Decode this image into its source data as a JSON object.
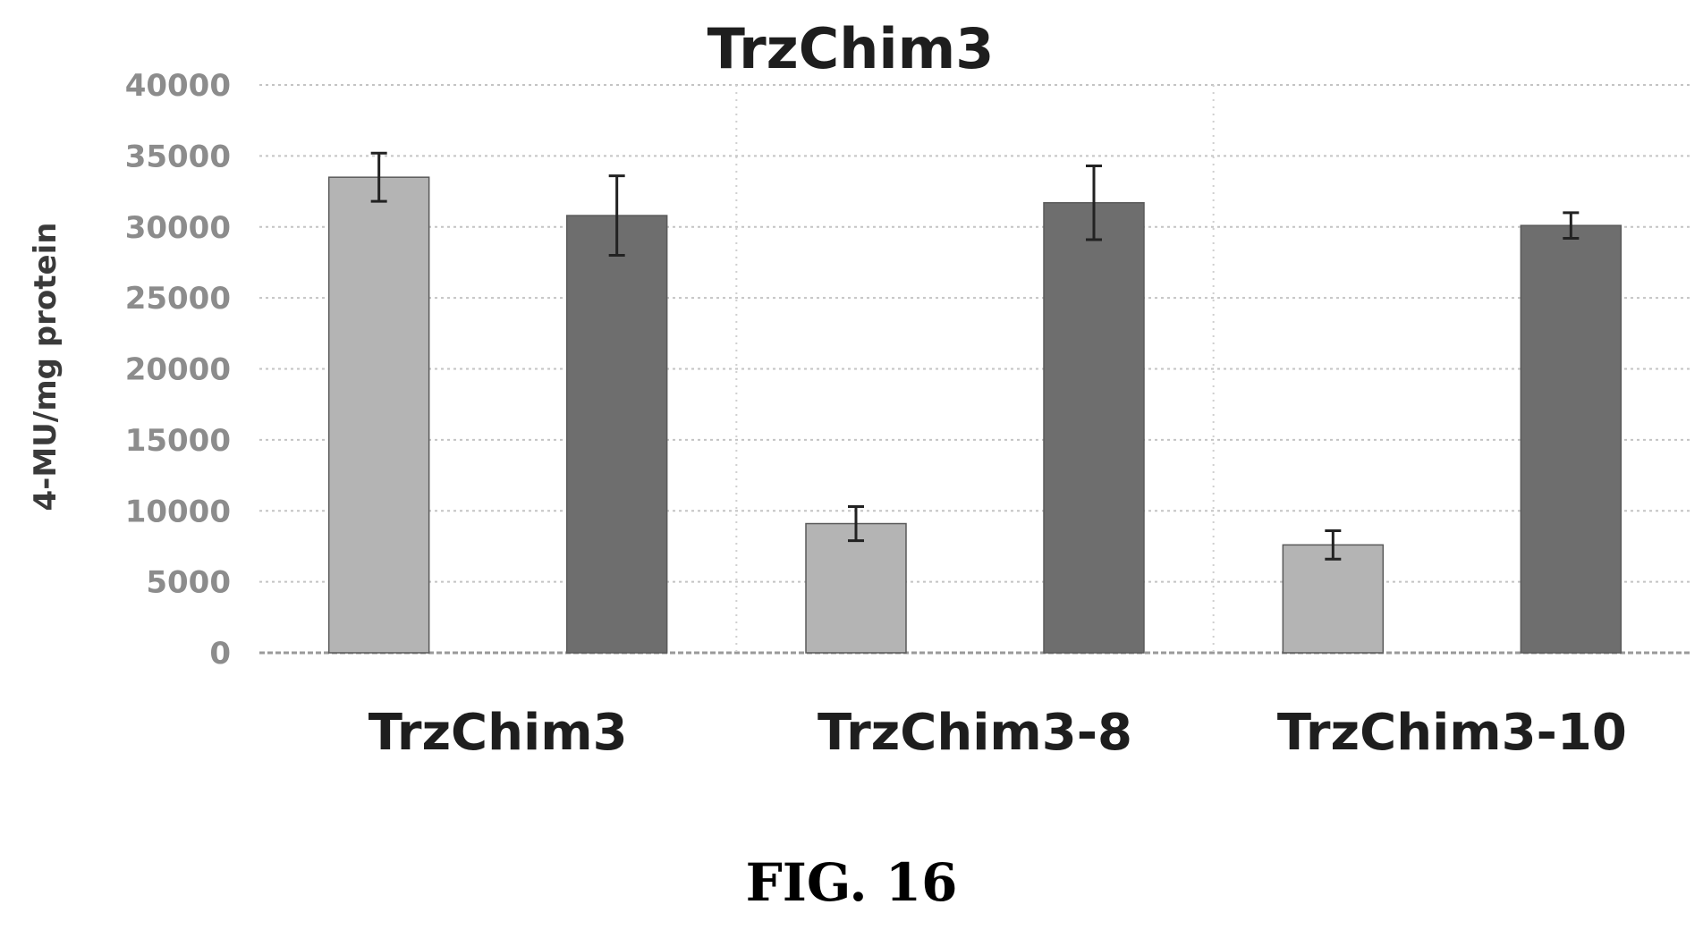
{
  "figure": {
    "caption": "FIG. 16"
  },
  "chart_data": {
    "type": "bar",
    "title": "TrzChim3",
    "xlabel": "",
    "ylabel": "4-MU/mg protein",
    "ylim": [
      0,
      40000
    ],
    "yticks": [
      0,
      5000,
      10000,
      15000,
      20000,
      25000,
      30000,
      35000,
      40000
    ],
    "grid": true,
    "legend": "none",
    "categories": [
      "TrzChim3",
      "TrzChim3-8",
      "TrzChim3-10"
    ],
    "series": [
      {
        "color": "#b4b4b4",
        "values": [
          33500,
          9100,
          7600
        ],
        "errors": [
          1700,
          1200,
          1000
        ]
      },
      {
        "color": "#6e6e6e",
        "values": [
          30800,
          31700,
          30100
        ],
        "errors": [
          2800,
          2600,
          900
        ]
      }
    ]
  }
}
